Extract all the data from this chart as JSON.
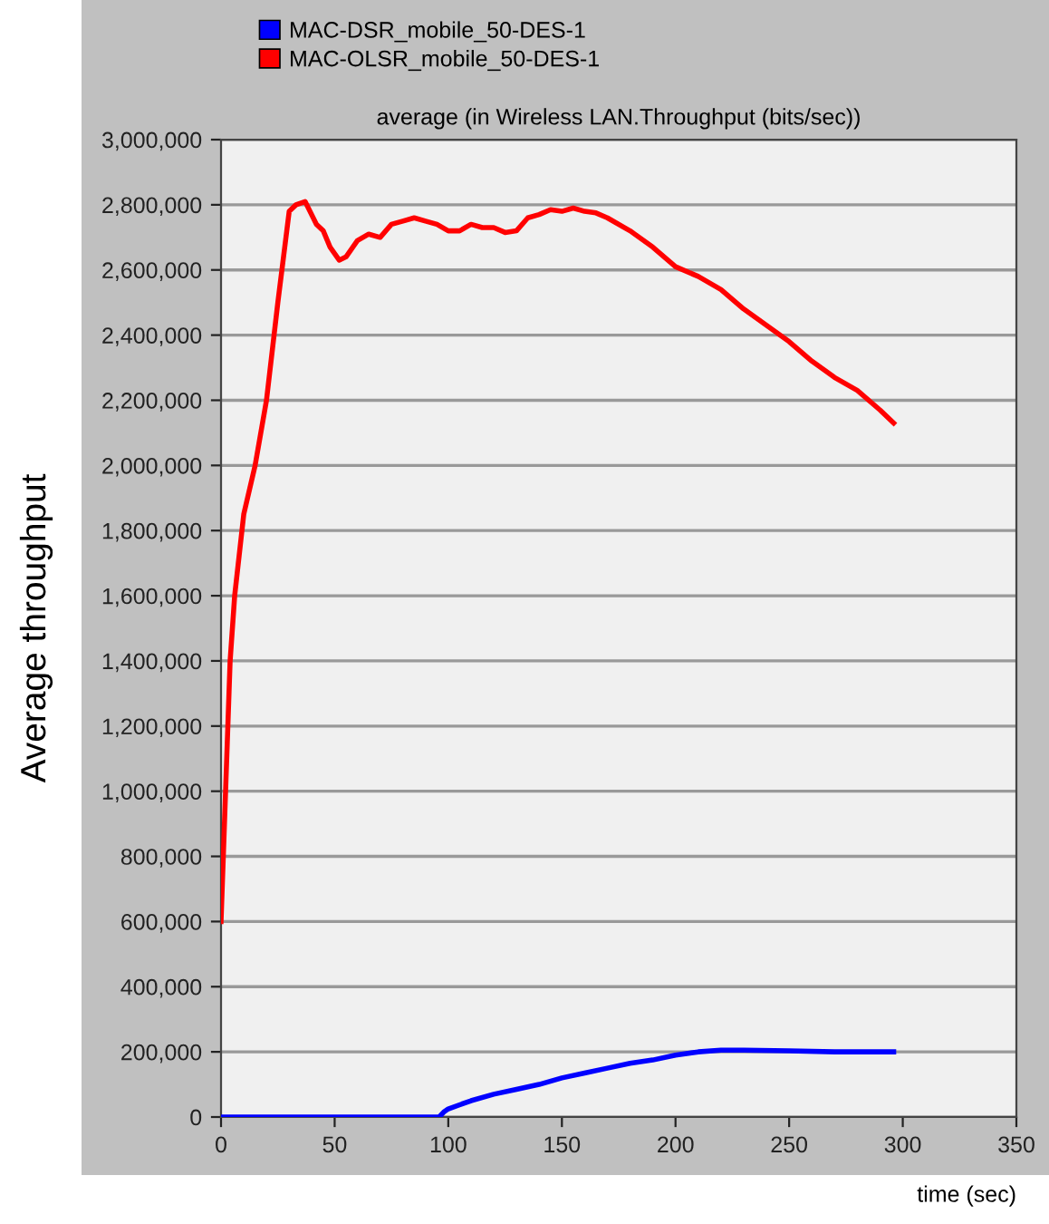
{
  "chart_data": {
    "type": "line",
    "title": "average (in Wireless LAN.Throughput (bits/sec))",
    "xlabel": "time (sec)",
    "ylabel": "Average throughput",
    "xlim": [
      0,
      350
    ],
    "xticks": [
      0,
      50,
      100,
      150,
      200,
      250,
      300,
      350
    ],
    "ylim": [
      0,
      3000000
    ],
    "yticks": [
      {
        "value": 0,
        "label": "0"
      },
      {
        "value": 200000,
        "label": "200,000"
      },
      {
        "value": 400000,
        "label": "400,000"
      },
      {
        "value": 600000,
        "label": "600,000"
      },
      {
        "value": 800000,
        "label": "800,000"
      },
      {
        "value": 1000000,
        "label": "1,000,000"
      },
      {
        "value": 1200000,
        "label": "1,200,000"
      },
      {
        "value": 1400000,
        "label": "1,400,000"
      },
      {
        "value": 1600000,
        "label": "1,600,000"
      },
      {
        "value": 1800000,
        "label": "1,800,000"
      },
      {
        "value": 2000000,
        "label": "2,000,000"
      },
      {
        "value": 2200000,
        "label": "2,200,000"
      },
      {
        "value": 2400000,
        "label": "2,400,000"
      },
      {
        "value": 2600000,
        "label": "2,600,000"
      },
      {
        "value": 2800000,
        "label": "2,800,000"
      },
      {
        "value": 3000000,
        "label": "3,000,000"
      }
    ],
    "grid": "y",
    "legend": "top left",
    "marker": "none",
    "line_style": "solid",
    "series": [
      {
        "name": "MAC-DSR_mobile_50-DES-1",
        "color": "#0000ff",
        "x": [
          0,
          20,
          40,
          60,
          80,
          96,
          98,
          100,
          110,
          120,
          130,
          140,
          150,
          160,
          170,
          180,
          190,
          200,
          210,
          220,
          230,
          250,
          270,
          296
        ],
        "values": [
          0,
          0,
          0,
          0,
          0,
          0,
          15000,
          25000,
          50000,
          70000,
          85000,
          100000,
          120000,
          135000,
          150000,
          165000,
          175000,
          190000,
          200000,
          205000,
          205000,
          203000,
          200000,
          200000
        ]
      },
      {
        "name": "MAC-OLSR_mobile_50-DES-1",
        "color": "#ff0000",
        "x": [
          0,
          2,
          4,
          6,
          10,
          15,
          20,
          25,
          30,
          33,
          37,
          42,
          45,
          48,
          52,
          55,
          60,
          65,
          70,
          75,
          80,
          85,
          90,
          95,
          100,
          105,
          110,
          115,
          120,
          125,
          130,
          135,
          140,
          145,
          150,
          155,
          160,
          165,
          170,
          180,
          190,
          200,
          210,
          220,
          230,
          240,
          250,
          260,
          270,
          280,
          290,
          296
        ],
        "values": [
          600000,
          1000000,
          1400000,
          1600000,
          1850000,
          2000000,
          2200000,
          2500000,
          2780000,
          2800000,
          2810000,
          2740000,
          2720000,
          2670000,
          2630000,
          2640000,
          2690000,
          2710000,
          2700000,
          2740000,
          2750000,
          2760000,
          2750000,
          2740000,
          2720000,
          2720000,
          2740000,
          2730000,
          2730000,
          2715000,
          2720000,
          2760000,
          2770000,
          2785000,
          2780000,
          2790000,
          2780000,
          2775000,
          2760000,
          2720000,
          2670000,
          2610000,
          2580000,
          2540000,
          2480000,
          2430000,
          2380000,
          2320000,
          2270000,
          2230000,
          2170000,
          2130000
        ]
      }
    ]
  }
}
